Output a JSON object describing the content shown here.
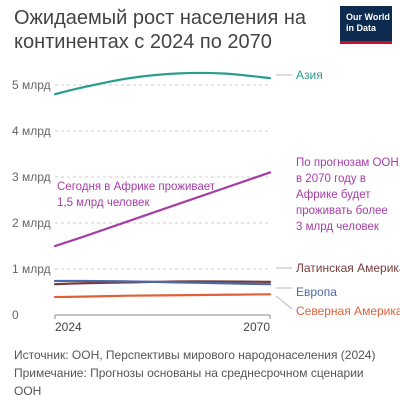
{
  "title": "Ожидаемый рост населения на континентах с 2024 по 2070",
  "logo": {
    "line1": "Our World",
    "line2": "in Data"
  },
  "footer": {
    "source": "Источник: ООН, Перспективы мирового народонаселения (2024)",
    "note": "Примечание: Прогнозы основаны на среднесрочном сценарии ООН"
  },
  "chart_data": {
    "type": "line",
    "x": [
      2024,
      2030,
      2040,
      2050,
      2060,
      2070
    ],
    "xticks": [
      "2024",
      "2070"
    ],
    "ylim": [
      0,
      5.4
    ],
    "yticks": [
      {
        "value": 0,
        "label": "0"
      },
      {
        "value": 1,
        "label": "1 млрд"
      },
      {
        "value": 2,
        "label": "2 млрд"
      },
      {
        "value": 3,
        "label": "3 млрд"
      },
      {
        "value": 4,
        "label": "4 млрд"
      },
      {
        "value": 5,
        "label": "5 млрд"
      }
    ],
    "grid": true,
    "series": [
      {
        "name": "Азия",
        "color": "#2a9d8f",
        "values": [
          4.8,
          4.95,
          5.15,
          5.25,
          5.25,
          5.15
        ]
      },
      {
        "name": "Африка",
        "color": "#a63da6",
        "values": [
          1.5,
          1.7,
          2.05,
          2.4,
          2.75,
          3.1
        ]
      },
      {
        "name": "Латинская Америка",
        "color": "#7a3b3b",
        "values": [
          0.67,
          0.69,
          0.71,
          0.73,
          0.73,
          0.72
        ]
      },
      {
        "name": "Европа",
        "color": "#4a6aa8",
        "values": [
          0.74,
          0.74,
          0.73,
          0.71,
          0.69,
          0.67
        ]
      },
      {
        "name": "Северная Америка",
        "color": "#e0603a",
        "values": [
          0.39,
          0.4,
          0.42,
          0.43,
          0.44,
          0.45
        ]
      }
    ],
    "annotations": [
      {
        "text": "Сегодня в Африке проживает 1,5 млрд человек",
        "color": "#a63da6"
      },
      {
        "text": "По прогнозам ООН, в 2070 году в Африке будет проживать более 3 млрд человек",
        "color": "#a63da6"
      }
    ]
  }
}
